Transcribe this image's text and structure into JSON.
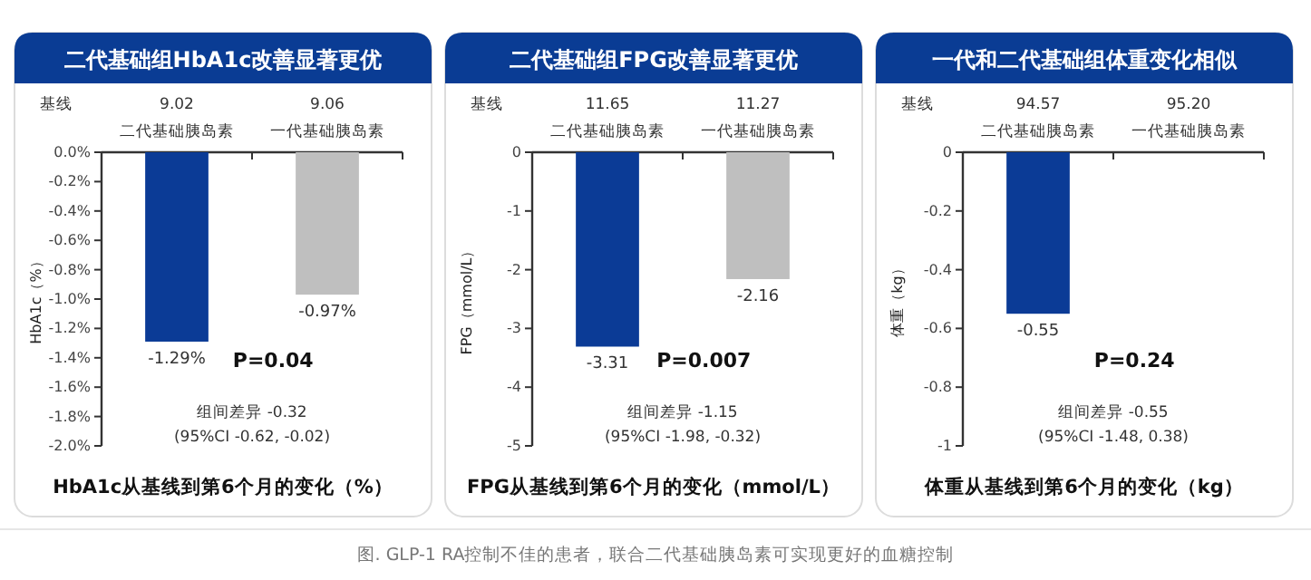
{
  "chart_data": [
    {
      "type": "bar",
      "title": "二代基础组HbA1c改善显著更优",
      "xlabel": "HbA1c从基线到第6个月的变化（%）",
      "ylabel": "HbA1c（%）",
      "categories": [
        "二代基础胰岛素",
        "一代基础胰岛素"
      ],
      "values": [
        -1.29,
        -0.97
      ],
      "colors": [
        "#0b3b96",
        "#bfbfbf"
      ],
      "value_labels": [
        "-1.29%",
        "-0.97%"
      ],
      "ylim": [
        -2.0,
        0.0
      ],
      "yticks": [
        {
          "value": 0.0,
          "label": "0.0%"
        },
        {
          "value": -0.2,
          "label": "-0.2%"
        },
        {
          "value": -0.4,
          "label": "-0.4%"
        },
        {
          "value": -0.6,
          "label": "-0.6%"
        },
        {
          "value": -0.8,
          "label": "-0.8%"
        },
        {
          "value": -1.0,
          "label": "-1.0%"
        },
        {
          "value": -1.2,
          "label": "-1.2%"
        },
        {
          "value": -1.4,
          "label": "-1.4%"
        },
        {
          "value": -1.6,
          "label": "-1.6%"
        },
        {
          "value": -1.8,
          "label": "-1.8%"
        },
        {
          "value": -2.0,
          "label": "-2.0%"
        }
      ],
      "annotations": [
        "基线",
        "9.02",
        "9.06",
        "P=0.04",
        "组间差异 -0.32",
        "(95%CI -0.62, -0.02)"
      ]
    },
    {
      "type": "bar",
      "title": "二代基础组FPG改善显著更优",
      "xlabel": "FPG从基线到第6个月的变化（mmol/L）",
      "ylabel": "FPG（mmol/L）",
      "categories": [
        "二代基础胰岛素",
        "一代基础胰岛素"
      ],
      "values": [
        -3.31,
        -2.16
      ],
      "colors": [
        "#0b3b96",
        "#bfbfbf"
      ],
      "value_labels": [
        "-3.31",
        "-2.16"
      ],
      "ylim": [
        -5,
        0
      ],
      "yticks": [
        0,
        -1,
        -2,
        -3,
        -4,
        -5
      ],
      "annotations": [
        "基线",
        "11.65",
        "11.27",
        "P=0.007",
        "组间差异 -1.15",
        "(95%CI -1.98, -0.32)"
      ]
    },
    {
      "type": "bar",
      "title": "一代和二代基础组体重变化相似",
      "xlabel": "体重从基线到第6个月的变化（kg）",
      "ylabel": "体重（kg）",
      "categories": [
        "二代基础胰岛素",
        "一代基础胰岛素"
      ],
      "values": [
        -0.55,
        null
      ],
      "colors": [
        "#0b3b96",
        null
      ],
      "value_labels": [
        "-0.55",
        null
      ],
      "ylim": [
        -1,
        0
      ],
      "yticks": [
        0,
        -0.2,
        -0.4,
        -0.6,
        -0.8,
        -1
      ],
      "annotations": [
        "基线",
        "94.57",
        "95.20",
        "P=0.24",
        "组间差异 -0.55",
        "(95%CI -1.48, 0.38)"
      ]
    },
    {
      "type": "other",
      "annotations": [
        "图. GLP-1 RA控制不佳的患者，联合二代基础胰岛素可实现更好的血糖控制"
      ]
    }
  ]
}
